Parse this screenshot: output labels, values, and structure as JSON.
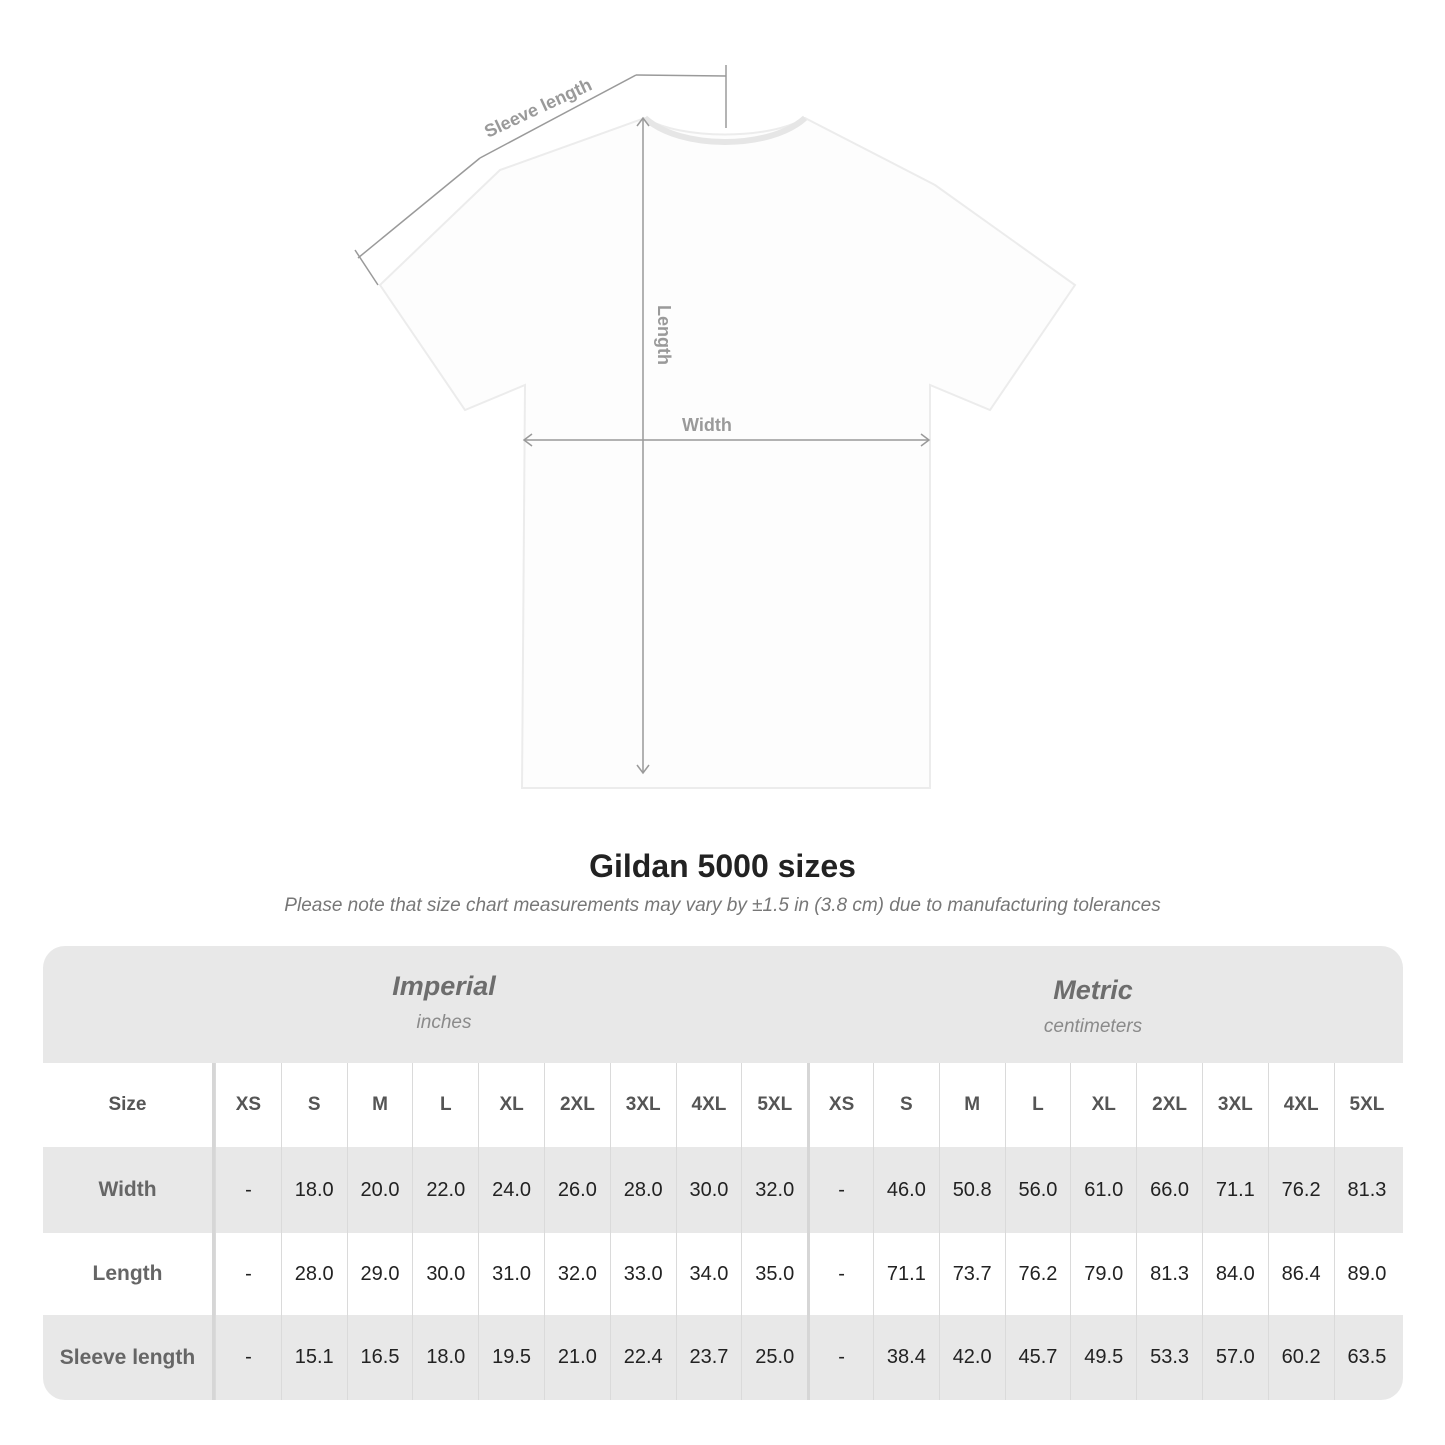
{
  "diagram": {
    "labels": {
      "sleeve": "Sleeve length",
      "length": "Length",
      "width": "Width"
    }
  },
  "header": {
    "title": "Gildan 5000 sizes",
    "note": "Please note that size chart measurements may vary by ±1.5 in (3.8 cm) due to manufacturing tolerances"
  },
  "table": {
    "imperial": {
      "title": "Imperial",
      "unit": "inches"
    },
    "metric": {
      "title": "Metric",
      "unit": "centimeters"
    },
    "size_label": "Size",
    "sizes": [
      "XS",
      "S",
      "M",
      "L",
      "XL",
      "2XL",
      "3XL",
      "4XL",
      "5XL"
    ],
    "rows": [
      {
        "label": "Width",
        "imperial": [
          "-",
          "18.0",
          "20.0",
          "22.0",
          "24.0",
          "26.0",
          "28.0",
          "30.0",
          "32.0"
        ],
        "metric": [
          "-",
          "46.0",
          "50.8",
          "56.0",
          "61.0",
          "66.0",
          "71.1",
          "76.2",
          "81.3"
        ]
      },
      {
        "label": "Length",
        "imperial": [
          "-",
          "28.0",
          "29.0",
          "30.0",
          "31.0",
          "32.0",
          "33.0",
          "34.0",
          "35.0"
        ],
        "metric": [
          "-",
          "71.1",
          "73.7",
          "76.2",
          "79.0",
          "81.3",
          "84.0",
          "86.4",
          "89.0"
        ]
      },
      {
        "label": "Sleeve length",
        "imperial": [
          "-",
          "15.1",
          "16.5",
          "18.0",
          "19.5",
          "21.0",
          "22.4",
          "23.7",
          "25.0"
        ],
        "metric": [
          "-",
          "38.4",
          "42.0",
          "45.7",
          "49.5",
          "53.3",
          "57.0",
          "60.2",
          "63.5"
        ]
      }
    ]
  },
  "colors": {
    "band": "#e8e8e8",
    "measure_line": "#9a9a9a",
    "label_text": "#666666"
  }
}
